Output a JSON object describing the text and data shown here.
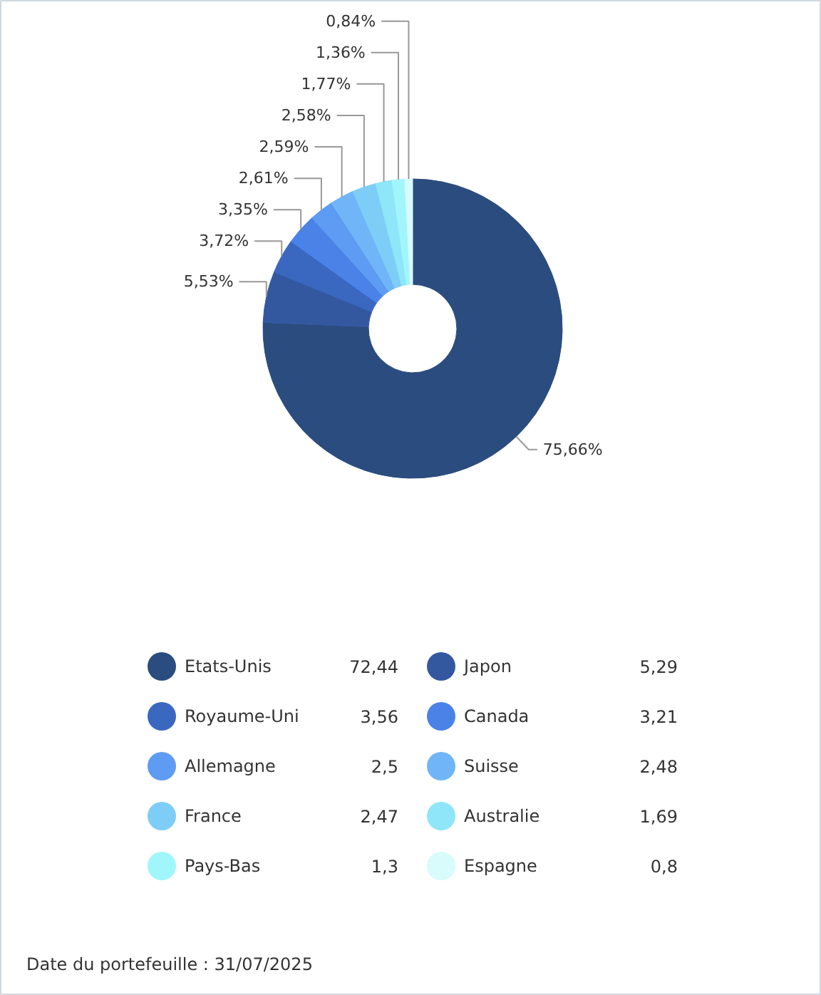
{
  "chart_data": {
    "type": "donut",
    "categories": [
      "Etats-Unis",
      "Japon",
      "Royaume-Uni",
      "Canada",
      "Allemagne",
      "Suisse",
      "France",
      "Australie",
      "Pays-Bas",
      "Espagne"
    ],
    "values": [
      75.66,
      5.53,
      3.72,
      3.35,
      2.61,
      2.59,
      2.58,
      1.77,
      1.36,
      0.84
    ],
    "value_labels": [
      "75,66%",
      "5,53%",
      "3,72%",
      "3,35%",
      "2,61%",
      "2,59%",
      "2,58%",
      "1,77%",
      "1,36%",
      "0,84%"
    ],
    "colors": [
      "#2b4c7e",
      "#3458a0",
      "#3a67c0",
      "#4a82e8",
      "#5e9bf2",
      "#6fb5f7",
      "#7ecdf7",
      "#8ee6f8",
      "#a0f6fb",
      "#d8fbfc"
    ],
    "legend": "bottom",
    "annotations": [
      "72,44",
      "5,29",
      "3,56",
      "3,21",
      "2,5",
      "2,48",
      "2,47",
      "1,69",
      "1,3",
      "0,8",
      "Date du portefeuille : 31/07/2025"
    ]
  }
}
